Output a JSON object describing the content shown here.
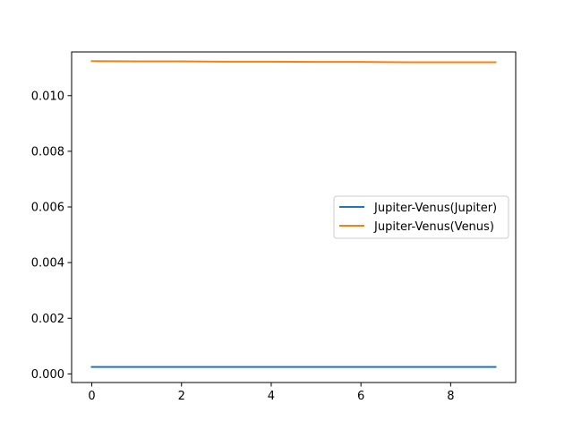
{
  "chart_data": {
    "type": "line",
    "title": "",
    "xlabel": "",
    "ylabel": "",
    "x": [
      0,
      1,
      2,
      3,
      4,
      5,
      6,
      7,
      8,
      9
    ],
    "xlim": [
      -0.45,
      9.45
    ],
    "ylim": [
      -0.00031,
      0.01157
    ],
    "xticks": [
      0,
      2,
      4,
      6,
      8
    ],
    "xtick_labels": [
      "0",
      "2",
      "4",
      "6",
      "8"
    ],
    "yticks": [
      0.0,
      0.002,
      0.004,
      0.006,
      0.008,
      0.01
    ],
    "ytick_labels": [
      "0.000",
      "0.002",
      "0.004",
      "0.006",
      "0.008",
      "0.010"
    ],
    "grid": false,
    "legend_position": "center-right",
    "series": [
      {
        "name": "Jupiter-Venus(Jupiter)",
        "color": "#1f77b4",
        "values": [
          0.00025,
          0.00025,
          0.00025,
          0.00025,
          0.00025,
          0.00025,
          0.00025,
          0.00025,
          0.00025,
          0.00025
        ]
      },
      {
        "name": "Jupiter-Venus(Venus)",
        "color": "#ff7f0e",
        "values": [
          0.01124,
          0.01123,
          0.01123,
          0.01122,
          0.01122,
          0.01121,
          0.01121,
          0.0112,
          0.0112,
          0.0112
        ]
      }
    ]
  }
}
